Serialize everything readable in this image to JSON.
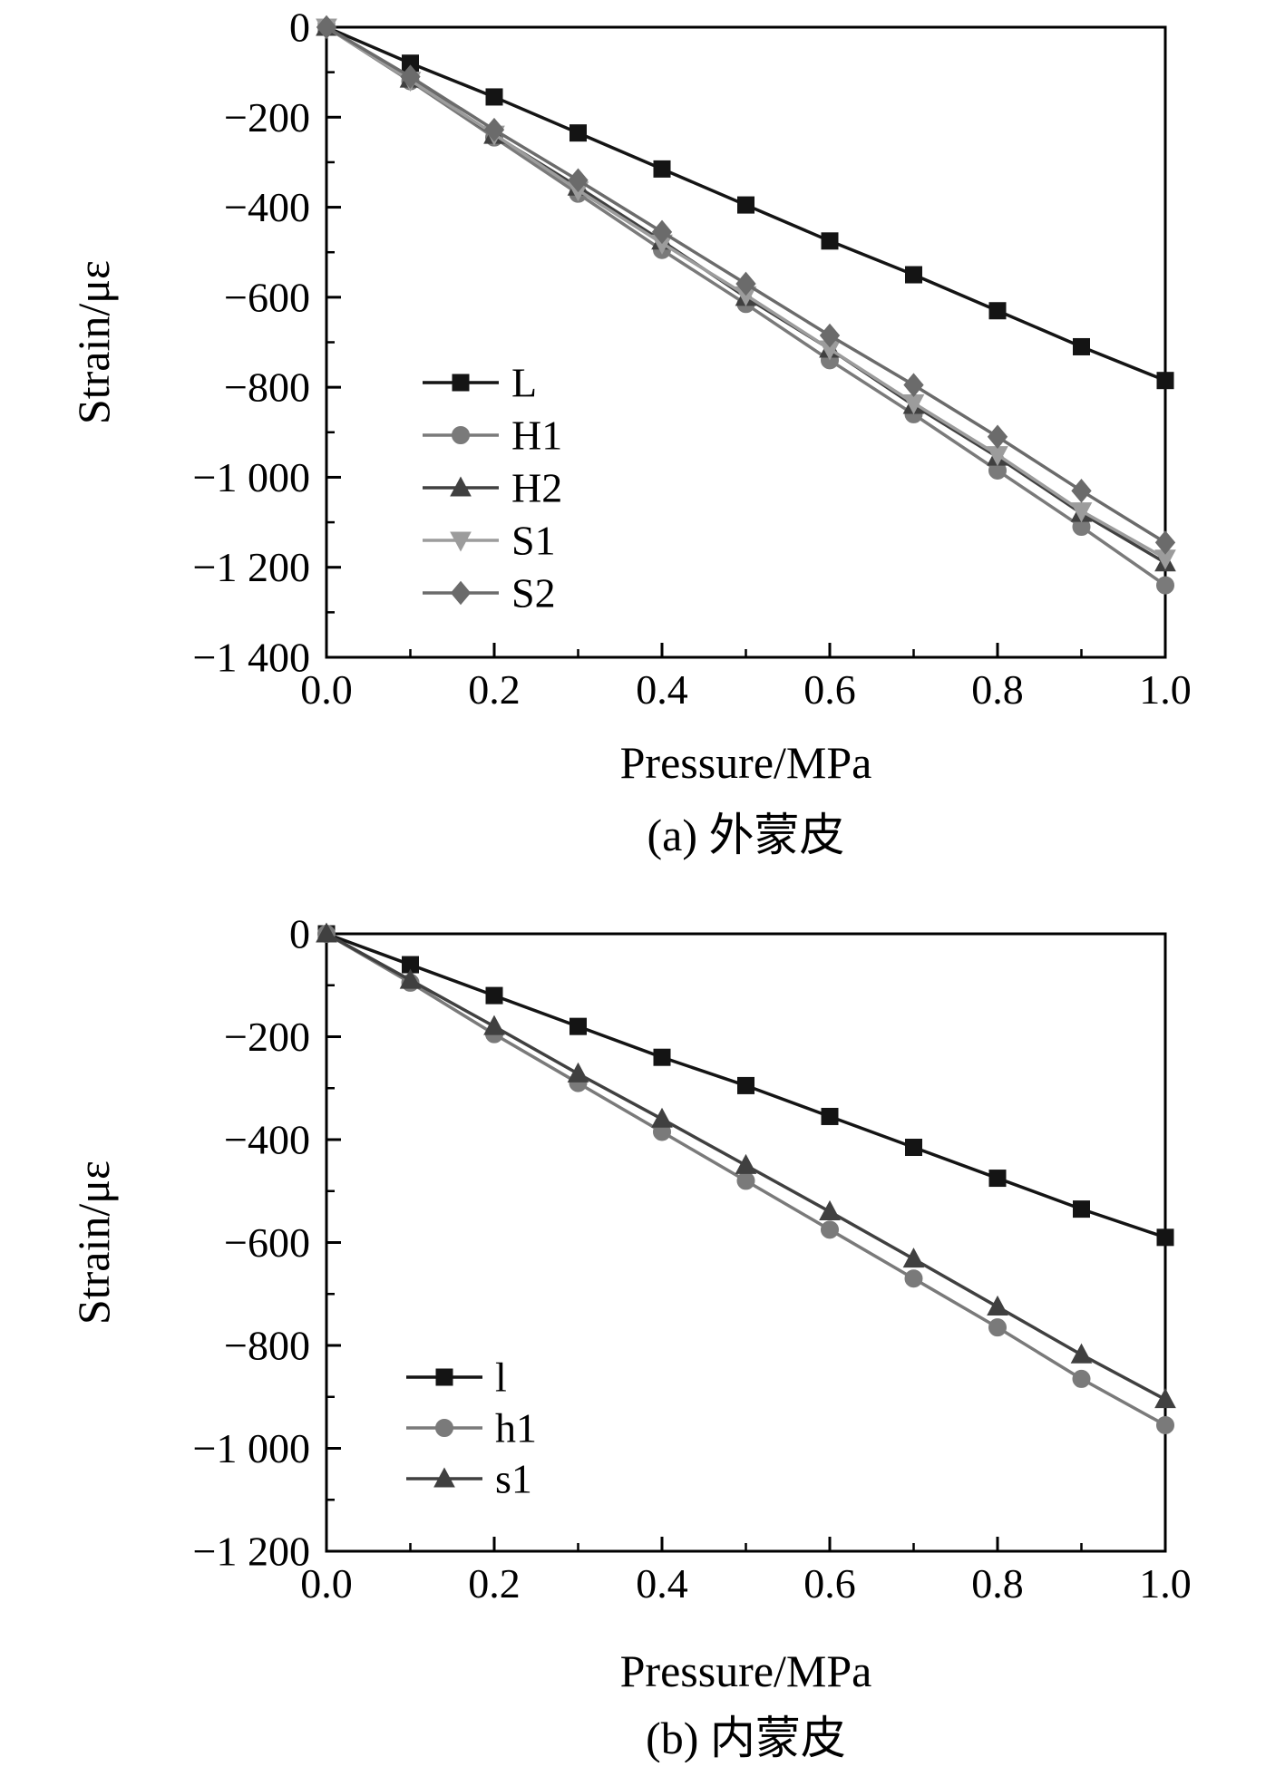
{
  "figure": {
    "background": "#ffffff",
    "text_color": "#000000",
    "axis_color": "#000000"
  },
  "chart_data": [
    {
      "id": "a",
      "type": "line",
      "caption": "(a) 外蒙皮",
      "xlabel": "Pressure/MPa",
      "ylabel": "Strain/με",
      "xlim": [
        0.0,
        1.0
      ],
      "ylim": [
        -1400,
        0
      ],
      "xticks": [
        0.0,
        0.2,
        0.4,
        0.6,
        0.8,
        1.0
      ],
      "xtick_labels": [
        "0.0",
        "0.2",
        "0.4",
        "0.6",
        "0.8",
        "1.0"
      ],
      "yticks": [
        0,
        -200,
        -400,
        -600,
        -800,
        -1000,
        -1200,
        -1400
      ],
      "ytick_labels": [
        "0",
        "−200",
        "−400",
        "−600",
        "−800",
        "−1 000",
        "−1 200",
        "−1 400"
      ],
      "grid": false,
      "legend_position": "inside lower-left",
      "x": [
        0,
        0.1,
        0.2,
        0.3,
        0.4,
        0.5,
        0.6,
        0.7,
        0.8,
        0.9,
        1.0
      ],
      "series": [
        {
          "name": "L",
          "marker": "square",
          "color": "#141414",
          "values": [
            0,
            -80,
            -155,
            -235,
            -315,
            -395,
            -475,
            -550,
            -630,
            -710,
            -785
          ]
        },
        {
          "name": "H1",
          "marker": "circle",
          "color": "#7a7a7a",
          "values": [
            0,
            -120,
            -245,
            -370,
            -495,
            -615,
            -740,
            -860,
            -985,
            -1110,
            -1240
          ]
        },
        {
          "name": "H2",
          "marker": "triangle-up",
          "color": "#404040",
          "values": [
            0,
            -115,
            -240,
            -355,
            -475,
            -600,
            -715,
            -840,
            -955,
            -1080,
            -1190
          ]
        },
        {
          "name": "S1",
          "marker": "triangle-down",
          "color": "#9c9c9c",
          "values": [
            0,
            -118,
            -238,
            -362,
            -480,
            -595,
            -715,
            -835,
            -950,
            -1075,
            -1180
          ]
        },
        {
          "name": "S2",
          "marker": "diamond",
          "color": "#6b6b6b",
          "values": [
            0,
            -110,
            -228,
            -340,
            -455,
            -570,
            -685,
            -795,
            -910,
            -1030,
            -1145
          ]
        }
      ]
    },
    {
      "id": "b",
      "type": "line",
      "caption": "(b) 内蒙皮",
      "xlabel": "Pressure/MPa",
      "ylabel": "Strain/με",
      "xlim": [
        0.0,
        1.0
      ],
      "ylim": [
        -1200,
        0
      ],
      "xticks": [
        0.0,
        0.2,
        0.4,
        0.6,
        0.8,
        1.0
      ],
      "xtick_labels": [
        "0.0",
        "0.2",
        "0.4",
        "0.6",
        "0.8",
        "1.0"
      ],
      "yticks": [
        0,
        -200,
        -400,
        -600,
        -800,
        -1000,
        -1200
      ],
      "ytick_labels": [
        "0",
        "−200",
        "−400",
        "−600",
        "−800",
        "−1 000",
        "−1 200"
      ],
      "grid": false,
      "legend_position": "inside lower-left",
      "x": [
        0,
        0.1,
        0.2,
        0.3,
        0.4,
        0.5,
        0.6,
        0.7,
        0.8,
        0.9,
        1.0
      ],
      "series": [
        {
          "name": "l",
          "marker": "square",
          "color": "#141414",
          "values": [
            0,
            -60,
            -120,
            -180,
            -240,
            -295,
            -355,
            -415,
            -475,
            -535,
            -590
          ]
        },
        {
          "name": "h1",
          "marker": "circle",
          "color": "#7a7a7a",
          "values": [
            0,
            -95,
            -195,
            -290,
            -385,
            -480,
            -575,
            -670,
            -765,
            -865,
            -955
          ]
        },
        {
          "name": "s1",
          "marker": "triangle-up",
          "color": "#404040",
          "values": [
            0,
            -90,
            -180,
            -272,
            -360,
            -450,
            -540,
            -632,
            -725,
            -818,
            -905
          ]
        }
      ]
    }
  ]
}
